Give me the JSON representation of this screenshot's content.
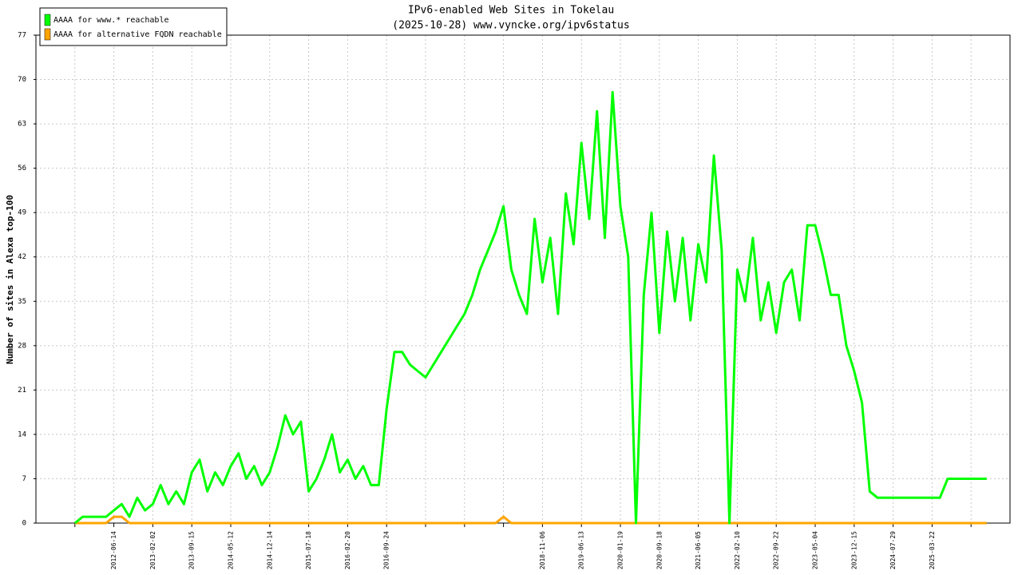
{
  "chart_data": {
    "type": "line",
    "title": "IPv6-enabled Web Sites in Tokelau",
    "subtitle": "(2025-10-28) www.vyncke.org/ipv6status",
    "y_label": "Number of sites in Alexa top-100",
    "categories": [
      null,
      null,
      null,
      null,
      null,
      null,
      null,
      null,
      null,
      null,
      "2012-06-14",
      null,
      null,
      null,
      null,
      "2013-02-02",
      null,
      null,
      null,
      null,
      "2013-09-15",
      null,
      null,
      null,
      null,
      "2014-05-12",
      null,
      null,
      null,
      null,
      "2014-12-14",
      null,
      null,
      null,
      null,
      "2015-07-18",
      null,
      null,
      null,
      null,
      "2016-02-20",
      null,
      null,
      null,
      null,
      "2016-09-24",
      null,
      null,
      null,
      null,
      null,
      null,
      null,
      null,
      null,
      null,
      null,
      null,
      null,
      null,
      null,
      null,
      null,
      null,
      null,
      "2018-11-06",
      null,
      null,
      null,
      null,
      "2019-06-13",
      null,
      null,
      null,
      null,
      "2020-01-19",
      null,
      null,
      null,
      null,
      "2020-09-18",
      null,
      null,
      null,
      null,
      "2021-06-05",
      null,
      null,
      null,
      null,
      "2022-02-10",
      null,
      null,
      null,
      null,
      "2022-09-22",
      null,
      null,
      null,
      null,
      "2023-05-04",
      null,
      null,
      null,
      null,
      "2023-12-15",
      null,
      null,
      null,
      null,
      "2024-07-29",
      null,
      null,
      null,
      null,
      "2025-03-22",
      null,
      null,
      null,
      null,
      null,
      null,
      null,
      null,
      null,
      null
    ],
    "series": [
      {
        "name": "AAAA for www.* reachable",
        "color": "#00ff00",
        "values": [
          null,
          null,
          null,
          null,
          null,
          0,
          1,
          1,
          1,
          1,
          2,
          3,
          1,
          4,
          2,
          3,
          6,
          3,
          5,
          3,
          8,
          10,
          5,
          8,
          6,
          9,
          11,
          7,
          9,
          6,
          8,
          12,
          17,
          14,
          16,
          5,
          7,
          10,
          14,
          8,
          10,
          7,
          9,
          6,
          6,
          18,
          27,
          27,
          25,
          24,
          23,
          25,
          27,
          29,
          31,
          33,
          36,
          40,
          43,
          46,
          50,
          40,
          36,
          33,
          48,
          38,
          45,
          33,
          52,
          44,
          60,
          48,
          65,
          45,
          68,
          50,
          42,
          0,
          36,
          49,
          30,
          46,
          35,
          45,
          32,
          44,
          38,
          58,
          43,
          0,
          40,
          35,
          45,
          32,
          38,
          30,
          38,
          40,
          32,
          47,
          47,
          42,
          36,
          36,
          28,
          24,
          19,
          5,
          4,
          4,
          4,
          4,
          4,
          4,
          4,
          4,
          4,
          7,
          7,
          7,
          7,
          7,
          7,
          null,
          null,
          null
        ]
      },
      {
        "name": "AAAA for alternative FQDN reachable",
        "color": "#ffa500",
        "values": [
          null,
          null,
          null,
          null,
          null,
          0,
          0,
          0,
          0,
          0,
          1,
          1,
          0,
          0,
          0,
          0,
          0,
          0,
          0,
          0,
          0,
          0,
          0,
          0,
          0,
          0,
          0,
          0,
          0,
          0,
          0,
          0,
          0,
          0,
          0,
          0,
          0,
          0,
          0,
          0,
          0,
          0,
          0,
          0,
          0,
          0,
          0,
          0,
          0,
          0,
          0,
          0,
          0,
          0,
          0,
          0,
          0,
          0,
          0,
          0,
          1,
          0,
          0,
          0,
          0,
          0,
          0,
          0,
          0,
          0,
          0,
          0,
          0,
          0,
          0,
          0,
          0,
          0,
          0,
          0,
          0,
          0,
          0,
          0,
          0,
          0,
          0,
          0,
          0,
          0,
          0,
          0,
          0,
          0,
          0,
          0,
          0,
          0,
          0,
          0,
          0,
          0,
          0,
          0,
          0,
          0,
          0,
          0,
          0,
          0,
          0,
          0,
          0,
          0,
          0,
          0,
          0,
          0,
          0,
          0,
          0,
          0,
          0,
          null,
          null,
          null
        ]
      }
    ],
    "ylim": [
      0,
      77
    ],
    "yticks": [
      0,
      7,
      14,
      21,
      28,
      35,
      42,
      49,
      56,
      63,
      70,
      77
    ],
    "grid": true,
    "legend": "top-left"
  }
}
